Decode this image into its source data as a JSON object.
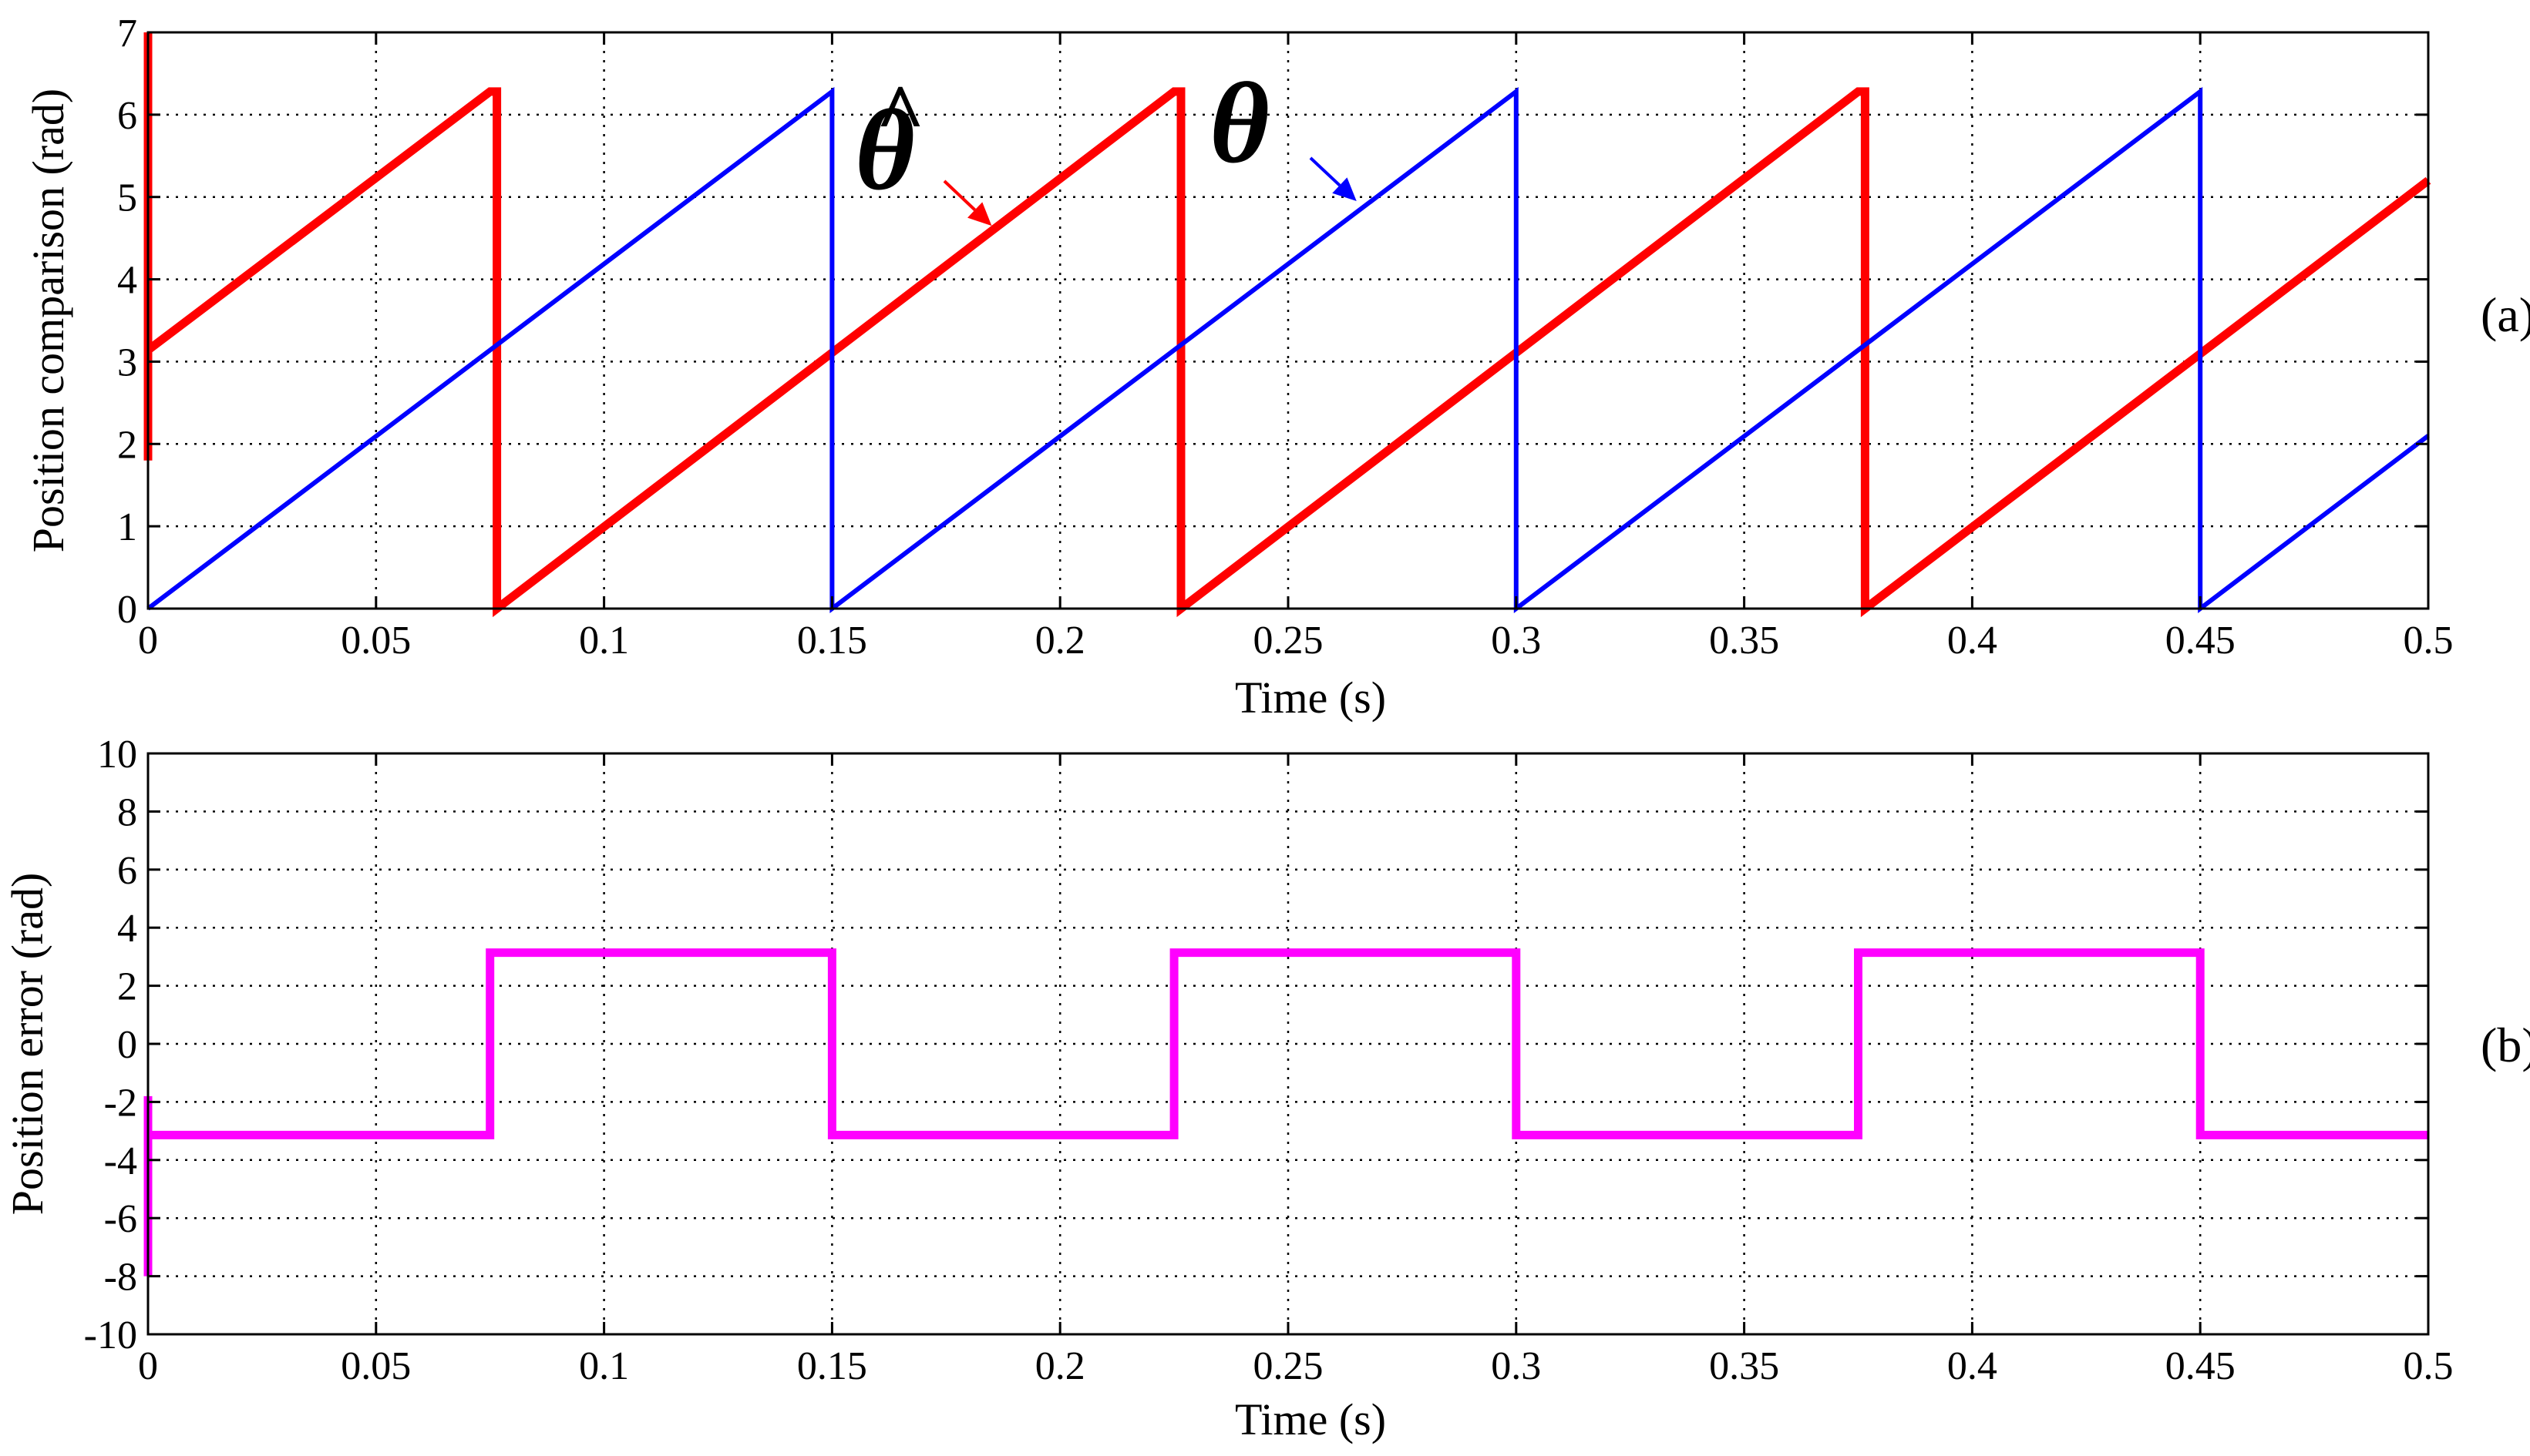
{
  "chart_data": [
    {
      "id": "a",
      "type": "line",
      "panel_tag": "(a)",
      "xlabel": "Time (s)",
      "ylabel": "Position comparison (rad)",
      "xlim": [
        0,
        0.5
      ],
      "ylim": [
        0,
        7
      ],
      "xticks": [
        0,
        0.05,
        0.1,
        0.15,
        0.2,
        0.25,
        0.3,
        0.35,
        0.4,
        0.45,
        0.5
      ],
      "xtick_labels": [
        "0",
        "0.05",
        "0.1",
        "0.15",
        "0.2",
        "0.25",
        "0.3",
        "0.35",
        "0.4",
        "0.45",
        "0.5"
      ],
      "yticks": [
        0,
        1,
        2,
        3,
        4,
        5,
        6,
        7
      ],
      "ytick_labels": [
        "0",
        "1",
        "2",
        "3",
        "4",
        "5",
        "6",
        "7"
      ],
      "grid": true,
      "series": [
        {
          "name": "theta-hat",
          "color": "#ff0000",
          "width": "thick",
          "points": [
            [
              0,
              1.8
            ],
            [
              0,
              7.0
            ],
            [
              0,
              3.14
            ],
            [
              0.075,
              6.28
            ],
            [
              0.0765,
              6.28
            ],
            [
              0.0765,
              0
            ],
            [
              0.225,
              6.28
            ],
            [
              0.2265,
              6.28
            ],
            [
              0.2265,
              0
            ],
            [
              0.375,
              6.28
            ],
            [
              0.3765,
              6.28
            ],
            [
              0.3765,
              0
            ],
            [
              0.5,
              5.2
            ]
          ]
        },
        {
          "name": "theta",
          "color": "#0000ff",
          "width": "thin",
          "points": [
            [
              0,
              0
            ],
            [
              0.15,
              6.28
            ],
            [
              0.15,
              0
            ],
            [
              0.3,
              6.28
            ],
            [
              0.3,
              0
            ],
            [
              0.45,
              6.28
            ],
            [
              0.45,
              0
            ],
            [
              0.5,
              2.1
            ]
          ]
        }
      ],
      "annotations": [
        {
          "label": "θ",
          "hat": "^",
          "series": "theta-hat",
          "color": "#ff0000",
          "point": [
            0.185,
            4.65
          ]
        },
        {
          "label": "θ",
          "series": "theta",
          "color": "#0000ff",
          "point": [
            0.265,
            4.95
          ]
        }
      ]
    },
    {
      "id": "b",
      "type": "line",
      "panel_tag": "(b)",
      "xlabel": "Time (s)",
      "ylabel": "Position error (rad)",
      "xlim": [
        0,
        0.5
      ],
      "ylim": [
        -10,
        10
      ],
      "xticks": [
        0,
        0.05,
        0.1,
        0.15,
        0.2,
        0.25,
        0.3,
        0.35,
        0.4,
        0.45,
        0.5
      ],
      "xtick_labels": [
        "0",
        "0.05",
        "0.1",
        "0.15",
        "0.2",
        "0.25",
        "0.3",
        "0.35",
        "0.4",
        "0.45",
        "0.5"
      ],
      "yticks": [
        -10,
        -8,
        -6,
        -4,
        -2,
        0,
        2,
        4,
        6,
        8,
        10
      ],
      "ytick_labels": [
        "-10",
        "-8",
        "-6",
        "-4",
        "-2",
        "0",
        "2",
        "4",
        "6",
        "8",
        "10"
      ],
      "grid": true,
      "series": [
        {
          "name": "position-error",
          "color": "#ff00ff",
          "width": "thick",
          "points": [
            [
              0,
              -8
            ],
            [
              0,
              -1.8
            ],
            [
              0,
              -3.14
            ],
            [
              0.075,
              -3.14
            ],
            [
              0.075,
              3.14
            ],
            [
              0.15,
              3.14
            ],
            [
              0.15,
              -3.14
            ],
            [
              0.225,
              -3.14
            ],
            [
              0.225,
              3.14
            ],
            [
              0.3,
              3.14
            ],
            [
              0.3,
              -3.14
            ],
            [
              0.375,
              -3.14
            ],
            [
              0.375,
              3.14
            ],
            [
              0.45,
              3.14
            ],
            [
              0.45,
              -3.14
            ],
            [
              0.5,
              -3.14
            ]
          ]
        }
      ]
    }
  ]
}
